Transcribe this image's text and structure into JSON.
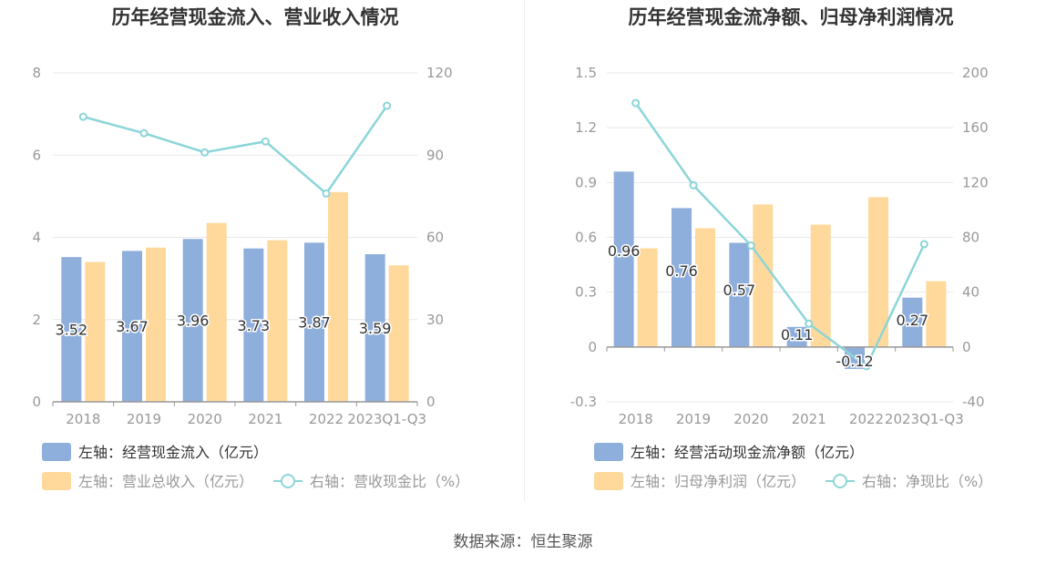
{
  "source_label": "数据来源：恒生聚源",
  "colors": {
    "bar_blue": "#8eaedc",
    "bar_orange": "#fed99b",
    "line_cyan": "#8cd5d8",
    "axis_text": "#999999",
    "grid": "#e8e8ee",
    "title": "#333333"
  },
  "chart_data": [
    {
      "type": "bar",
      "title": "历年经营现金流入、营业收入情况",
      "categories": [
        "2018",
        "2019",
        "2020",
        "2021",
        "2022",
        "2023Q1-Q3"
      ],
      "left_axis": {
        "ylim": [
          0,
          8
        ],
        "ticks": [
          "0",
          "2",
          "4",
          "6",
          "8"
        ],
        "tick_values": [
          0,
          2,
          4,
          6,
          8
        ]
      },
      "right_axis": {
        "ylim": [
          0,
          120
        ],
        "ticks": [
          "0",
          "30",
          "60",
          "90",
          "120"
        ],
        "tick_values": [
          0,
          30,
          60,
          90,
          120
        ]
      },
      "series": [
        {
          "name": "左轴：经营现金流入（亿元）",
          "type": "bar",
          "axis": "left",
          "values": [
            3.52,
            3.67,
            3.96,
            3.73,
            3.87,
            3.59
          ],
          "labels": [
            "3.52",
            "3.67",
            "3.96",
            "3.73",
            "3.87",
            "3.59"
          ]
        },
        {
          "name": "左轴：营业总收入（亿元）",
          "type": "bar",
          "axis": "left",
          "values": [
            3.4,
            3.75,
            4.35,
            3.93,
            5.1,
            3.32
          ]
        },
        {
          "name": "右轴：营收现金比（%）",
          "type": "line",
          "axis": "right",
          "values": [
            104,
            98,
            91,
            95,
            76,
            108
          ]
        }
      ]
    },
    {
      "type": "bar",
      "title": "历年经营现金流净额、归母净利润情况",
      "categories": [
        "2018",
        "2019",
        "2020",
        "2021",
        "2022",
        "2023Q1-Q3"
      ],
      "left_axis": {
        "ylim": [
          -0.3,
          1.5
        ],
        "ticks": [
          "-0.3",
          "0",
          "0.3",
          "0.6",
          "0.9",
          "1.2",
          "1.5"
        ],
        "tick_values": [
          -0.3,
          0,
          0.3,
          0.6,
          0.9,
          1.2,
          1.5
        ]
      },
      "right_axis": {
        "ylim": [
          -40,
          200
        ],
        "ticks": [
          "-40",
          "0",
          "40",
          "80",
          "120",
          "160",
          "200"
        ],
        "tick_values": [
          -40,
          0,
          40,
          80,
          120,
          160,
          200
        ]
      },
      "series": [
        {
          "name": "左轴：经营活动现金流净额（亿元）",
          "type": "bar",
          "axis": "left",
          "values": [
            0.96,
            0.76,
            0.57,
            0.11,
            -0.12,
            0.27
          ],
          "labels": [
            "0.96",
            "0.76",
            "0.57",
            "0.11",
            "-0.12",
            "0.27"
          ]
        },
        {
          "name": "左轴：归母净利润（亿元）",
          "type": "bar",
          "axis": "left",
          "values": [
            0.54,
            0.65,
            0.78,
            0.67,
            0.82,
            0.36
          ]
        },
        {
          "name": "右轴：净现比（%）",
          "type": "line",
          "axis": "right",
          "values": [
            178,
            118,
            74,
            17,
            -14,
            75
          ]
        }
      ]
    }
  ]
}
